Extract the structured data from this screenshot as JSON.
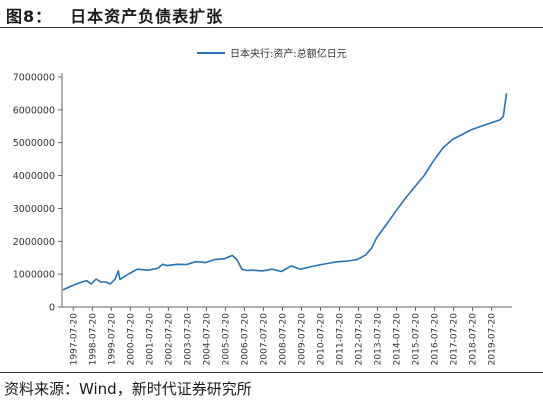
{
  "figure": {
    "label": "图8：",
    "title": "日本资产负债表扩张"
  },
  "source": "资料来源：Wind，新时代证券研究所",
  "chart_data": {
    "type": "line",
    "xlabel": "",
    "ylabel": "",
    "ylim": [
      0,
      7000000
    ],
    "yticks": [
      0,
      1000000,
      2000000,
      3000000,
      4000000,
      5000000,
      6000000,
      7000000
    ],
    "ytick_labels": [
      "0",
      "1000000",
      "2000000",
      "3000000",
      "4000000",
      "5000000",
      "6000000",
      "7000000"
    ],
    "xtick_labels": [
      "1997-07-20",
      "1998-07-20",
      "1999-07-20",
      "2000-07-20",
      "2001-07-20",
      "2002-07-20",
      "2003-07-20",
      "2004-07-20",
      "2005-07-20",
      "2006-07-20",
      "2007-07-20",
      "2008-07-20",
      "2009-07-20",
      "2010-07-20",
      "2011-07-20",
      "2012-07-20",
      "2013-07-20",
      "2014-07-20",
      "2015-07-20",
      "2016-07-20",
      "2017-07-20",
      "2018-07-20",
      "2019-07-20"
    ],
    "grid": false,
    "legend_position": "top-center",
    "color": "#2873b6",
    "series": [
      {
        "name": "日本央行:资产:总额亿日元",
        "x": [
          "1997-01-01",
          "1997-07-01",
          "1998-01-01",
          "1998-04-01",
          "1998-07-01",
          "1998-10-01",
          "1999-01-01",
          "1999-04-01",
          "1999-07-01",
          "1999-10-01",
          "1999-12-01",
          "2000-01-01",
          "2000-07-01",
          "2000-12-01",
          "2001-07-01",
          "2002-01-01",
          "2002-04-01",
          "2002-07-01",
          "2003-01-01",
          "2003-07-01",
          "2004-01-01",
          "2004-07-01",
          "2005-01-01",
          "2005-07-01",
          "2005-12-01",
          "2006-03-01",
          "2006-06-01",
          "2006-09-01",
          "2007-01-01",
          "2007-07-01",
          "2008-01-01",
          "2008-07-01",
          "2009-01-01",
          "2009-07-01",
          "2010-01-01",
          "2010-07-01",
          "2011-03-01",
          "2011-07-01",
          "2012-01-01",
          "2012-07-01",
          "2012-12-01",
          "2013-04-01",
          "2013-07-01",
          "2014-01-01",
          "2014-07-01",
          "2015-01-01",
          "2015-07-01",
          "2016-01-01",
          "2016-07-01",
          "2017-01-01",
          "2017-07-01",
          "2018-01-01",
          "2018-07-01",
          "2019-01-01",
          "2019-07-01",
          "2020-01-01",
          "2020-03-01",
          "2020-05-01"
        ],
        "y": [
          520000,
          650000,
          760000,
          800000,
          700000,
          850000,
          760000,
          760000,
          700000,
          850000,
          1100000,
          840000,
          1020000,
          1150000,
          1120000,
          1180000,
          1300000,
          1260000,
          1300000,
          1290000,
          1380000,
          1350000,
          1450000,
          1470000,
          1570000,
          1430000,
          1150000,
          1110000,
          1120000,
          1100000,
          1150000,
          1080000,
          1250000,
          1150000,
          1220000,
          1280000,
          1350000,
          1380000,
          1400000,
          1450000,
          1580000,
          1800000,
          2100000,
          2500000,
          2900000,
          3300000,
          3650000,
          4000000,
          4450000,
          4850000,
          5100000,
          5250000,
          5400000,
          5500000,
          5600000,
          5700000,
          5800000,
          6500000
        ]
      }
    ]
  }
}
